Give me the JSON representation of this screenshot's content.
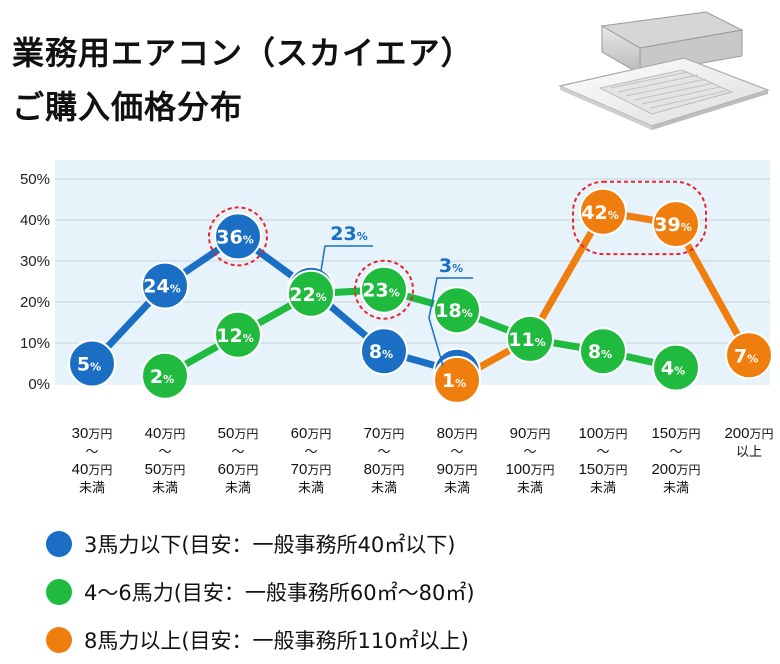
{
  "title": {
    "line1": "業務用エアコン（スカイエア）",
    "line2": "ご購入価格分布"
  },
  "chart_data": {
    "type": "line",
    "ylim": [
      0,
      50
    ],
    "yticks": [
      "0%",
      "10%",
      "20%",
      "30%",
      "40%",
      "50%"
    ],
    "grid": true,
    "categories": [
      {
        "lines": [
          [
            "30",
            "万円"
          ],
          [
            "〜",
            ""
          ],
          [
            "40",
            "万円"
          ],
          [
            "未満",
            ""
          ]
        ]
      },
      {
        "lines": [
          [
            "40",
            "万円"
          ],
          [
            "〜",
            ""
          ],
          [
            "50",
            "万円"
          ],
          [
            "未満",
            ""
          ]
        ]
      },
      {
        "lines": [
          [
            "50",
            "万円"
          ],
          [
            "〜",
            ""
          ],
          [
            "60",
            "万円"
          ],
          [
            "未満",
            ""
          ]
        ]
      },
      {
        "lines": [
          [
            "60",
            "万円"
          ],
          [
            "〜",
            ""
          ],
          [
            "70",
            "万円"
          ],
          [
            "未満",
            ""
          ]
        ]
      },
      {
        "lines": [
          [
            "70",
            "万円"
          ],
          [
            "〜",
            ""
          ],
          [
            "80",
            "万円"
          ],
          [
            "未満",
            ""
          ]
        ]
      },
      {
        "lines": [
          [
            "80",
            "万円"
          ],
          [
            "〜",
            ""
          ],
          [
            "90",
            "万円"
          ],
          [
            "未満",
            ""
          ]
        ]
      },
      {
        "lines": [
          [
            "90",
            "万円"
          ],
          [
            "〜",
            ""
          ],
          [
            "100",
            "万円"
          ],
          [
            "未満",
            ""
          ]
        ]
      },
      {
        "lines": [
          [
            "100",
            "万円"
          ],
          [
            "〜",
            ""
          ],
          [
            "150",
            "万円"
          ],
          [
            "未満",
            ""
          ]
        ]
      },
      {
        "lines": [
          [
            "150",
            "万円"
          ],
          [
            "〜",
            ""
          ],
          [
            "200",
            "万円"
          ],
          [
            "未満",
            ""
          ]
        ]
      },
      {
        "lines": [
          [
            "200",
            "万円"
          ],
          [
            "以上",
            ""
          ]
        ]
      }
    ],
    "series": [
      {
        "name": "3馬力以下(目安：一般事務所40㎡以下)",
        "color": "#1a6fc4",
        "values": [
          5,
          24,
          36,
          23,
          8,
          3,
          null,
          null,
          null,
          null
        ],
        "highlight": [
          2
        ],
        "callout": [
          3,
          5
        ]
      },
      {
        "name": "4〜6馬力(目安：一般事務所60㎡〜80㎡)",
        "color": "#1fba3e",
        "values": [
          null,
          2,
          12,
          22,
          23,
          18,
          11,
          8,
          4,
          null
        ],
        "highlight": [
          4
        ],
        "callout": []
      },
      {
        "name": "8馬力以上(目安：一般事務所110㎡以上)",
        "color": "#f07e0e",
        "values": [
          null,
          null,
          null,
          null,
          null,
          1,
          11,
          42,
          39,
          7
        ],
        "highlight": [
          7,
          8
        ],
        "callout": []
      }
    ],
    "percent_sign": "%",
    "highlight_color": "#e8242c"
  },
  "legend": [
    {
      "label": "3馬力以下(目安：一般事務所40㎡以下)",
      "color": "#1a6fc4"
    },
    {
      "label": "4〜6馬力(目安：一般事務所60㎡〜80㎡)",
      "color": "#1fba3e"
    },
    {
      "label": "8馬力以上(目安：一般事務所110㎡以上)",
      "color": "#f07e0e"
    }
  ]
}
